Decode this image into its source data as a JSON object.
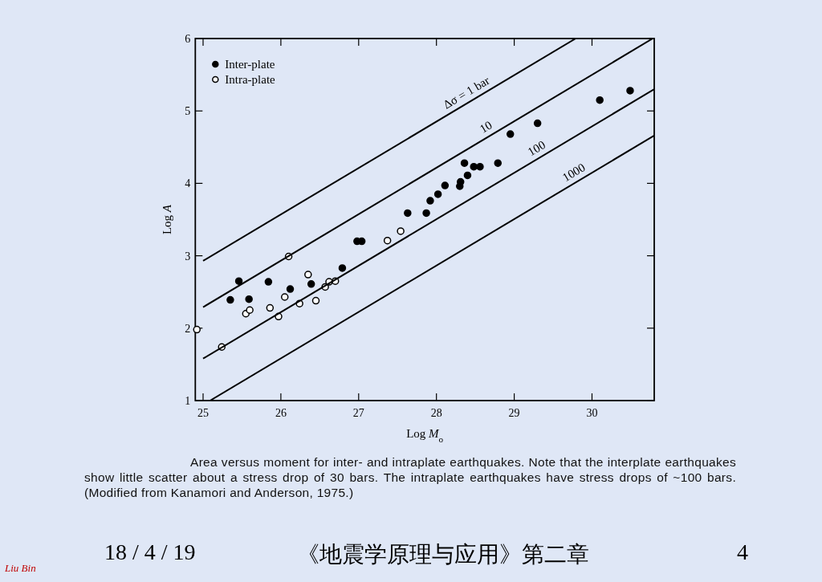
{
  "chart_data": {
    "type": "scatter",
    "xlabel": "Log *M*$_{o}$",
    "ylabel": "Log *A*",
    "xlim": [
      24.9,
      30.8
    ],
    "ylim": [
      1,
      6
    ],
    "xticks": [
      25,
      26,
      27,
      28,
      29,
      30
    ],
    "yticks": [
      1,
      2,
      3,
      4,
      5,
      6
    ],
    "legend": "top left",
    "marker": "circle",
    "grid": false,
    "series": [
      {
        "name": "Inter-plate",
        "color": "#000000",
        "x": [
          25.35,
          25.46,
          25.59,
          25.84,
          26.12,
          26.39,
          26.79,
          26.98,
          27.04,
          27.63,
          27.87,
          27.92,
          28.02,
          28.11,
          28.3,
          28.31,
          28.4,
          28.36,
          28.48,
          28.56,
          28.79,
          28.95,
          29.3,
          30.1,
          30.49
        ],
        "values": [
          2.39,
          2.65,
          2.4,
          2.64,
          2.54,
          2.61,
          2.83,
          3.2,
          3.2,
          3.59,
          3.59,
          3.76,
          3.85,
          3.97,
          3.96,
          4.02,
          4.11,
          4.28,
          4.23,
          4.23,
          4.28,
          4.68,
          4.83,
          5.15,
          5.28
        ]
      },
      {
        "name": "Intra-plate",
        "color": "#ffffff",
        "x": [
          24.92,
          25.24,
          25.55,
          25.6,
          25.86,
          25.97,
          26.1,
          26.05,
          26.24,
          26.35,
          26.45,
          26.57,
          26.62,
          26.7,
          27.37,
          27.54
        ],
        "values": [
          1.98,
          1.74,
          2.2,
          2.25,
          2.28,
          2.16,
          2.99,
          2.43,
          2.34,
          2.74,
          2.38,
          2.57,
          2.64,
          2.65,
          3.21,
          3.34
        ]
      },
      {
        "name": "Δσ = 1 bar",
        "type": "line",
        "marker": "none",
        "color": "#000000",
        "x": [
          25,
          29.79
        ],
        "values": [
          2.93,
          6
        ]
      },
      {
        "name": "10",
        "type": "line",
        "marker": "none",
        "color": "#000000",
        "x": [
          25,
          30.78
        ],
        "values": [
          2.29,
          6
        ]
      },
      {
        "name": "100",
        "type": "line",
        "marker": "none",
        "color": "#000000",
        "x": [
          25,
          30.8
        ],
        "values": [
          1.58,
          5.3
        ]
      },
      {
        "name": "1000",
        "type": "line",
        "marker": "none",
        "color": "#000000",
        "x": [
          25.09,
          30.8
        ],
        "values": [
          1,
          4.66
        ]
      }
    ],
    "annotations": [
      "Area versus moment for inter- and intraplate earthquakes. Note that the interplate earthquakes show little scatter about a stress drop of 30 bars. The intraplate earthquakes have stress drops of ~100 bars. (Modified from Kanamori and Anderson, 1975.)",
      "18 / 4 / 19",
      "《地震学原理与应用》第二章",
      "4",
      "Liu Bin"
    ]
  }
}
